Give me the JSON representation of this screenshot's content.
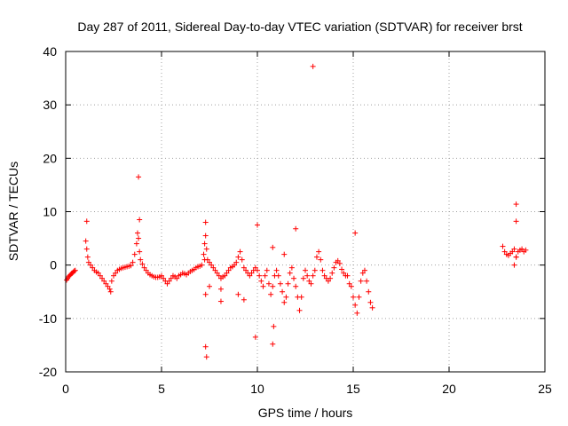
{
  "chart_data": {
    "type": "scatter",
    "title": "Day 287 of 2011, Sidereal Day-to-day VTEC variation (SDTVAR) for receiver brst",
    "xlabel": "GPS time / hours",
    "ylabel": "SDTVAR / TECUs",
    "xlim": [
      0,
      25
    ],
    "ylim": [
      -20,
      40
    ],
    "xticks": [
      0,
      5,
      10,
      15,
      20,
      25
    ],
    "yticks": [
      -20,
      -10,
      0,
      10,
      20,
      30,
      40
    ],
    "grid": true,
    "marker": "+",
    "color": "#ff0000",
    "series": [
      {
        "name": "SDTVAR",
        "x": [
          0.05,
          0.1,
          0.15,
          0.2,
          0.25,
          0.3,
          0.35,
          0.4,
          0.45,
          0.5,
          1.05,
          1.1,
          1.15,
          1.2,
          1.3,
          1.4,
          1.5,
          1.6,
          1.7,
          1.8,
          1.9,
          2.0,
          2.1,
          2.2,
          2.3,
          2.35,
          2.4,
          2.5,
          2.6,
          2.7,
          2.8,
          2.9,
          3.0,
          3.1,
          3.2,
          3.3,
          3.4,
          3.5,
          3.6,
          3.7,
          3.75,
          3.8,
          3.85,
          3.9,
          4.0,
          4.1,
          4.2,
          4.3,
          4.4,
          4.5,
          4.6,
          4.7,
          4.8,
          4.9,
          5.0,
          5.1,
          5.2,
          5.3,
          5.4,
          5.5,
          5.6,
          5.7,
          5.8,
          5.9,
          6.0,
          6.1,
          6.2,
          6.3,
          6.4,
          6.5,
          6.6,
          6.7,
          6.8,
          6.9,
          7.0,
          7.1,
          7.2,
          7.25,
          7.3,
          7.35,
          7.4,
          7.5,
          7.6,
          7.7,
          7.8,
          7.9,
          8.0,
          8.1,
          8.2,
          8.3,
          8.4,
          8.5,
          8.6,
          8.7,
          8.8,
          8.9,
          9.0,
          9.1,
          9.2,
          9.3,
          9.4,
          9.5,
          9.6,
          9.7,
          9.8,
          9.9,
          10.0,
          10.1,
          10.2,
          10.3,
          10.4,
          10.5,
          10.6,
          10.7,
          10.8,
          10.9,
          11.0,
          11.1,
          11.2,
          11.3,
          11.4,
          11.5,
          11.6,
          11.7,
          11.8,
          11.9,
          12.0,
          12.1,
          12.2,
          12.3,
          12.4,
          12.5,
          12.6,
          12.7,
          12.8,
          12.9,
          13.0,
          13.1,
          13.2,
          13.3,
          13.4,
          13.5,
          13.6,
          13.7,
          13.8,
          13.9,
          14.0,
          14.1,
          14.2,
          14.3,
          14.4,
          14.5,
          14.6,
          14.7,
          14.8,
          14.9,
          15.0,
          15.1,
          15.2,
          15.3,
          15.4,
          15.5,
          15.6,
          15.7,
          15.8,
          15.9,
          16.0,
          22.8,
          22.9,
          23.0,
          23.1,
          23.2,
          23.3,
          23.4,
          23.5,
          23.6,
          23.7,
          23.8,
          23.9,
          24.0,
          1.1,
          3.8,
          3.85,
          7.3,
          7.35,
          7.3,
          7.3,
          7.5,
          7.25,
          8.1,
          8.1,
          9.0,
          9.3,
          9.9,
          10.0,
          10.8,
          10.85,
          10.8,
          11.4,
          12.0,
          12.9,
          15.1,
          23.5,
          23.5,
          23.4,
          23.5
        ],
        "y": [
          -2.8,
          -2.5,
          -2.2,
          -2.0,
          -1.8,
          -1.6,
          -1.5,
          -1.3,
          -1.1,
          -1.0,
          4.5,
          3.0,
          1.5,
          0.5,
          0.0,
          -0.5,
          -1.0,
          -1.3,
          -1.5,
          -2.0,
          -2.5,
          -3.0,
          -3.5,
          -4.0,
          -4.5,
          -5.0,
          -3.0,
          -2.0,
          -1.5,
          -1.0,
          -0.8,
          -0.6,
          -0.5,
          -0.4,
          -0.3,
          -0.2,
          -0.1,
          0.5,
          2.0,
          4.0,
          6.0,
          5.0,
          2.5,
          1.0,
          0.2,
          -0.5,
          -1.0,
          -1.5,
          -1.8,
          -2.0,
          -2.2,
          -2.3,
          -2.3,
          -2.2,
          -2.0,
          -2.5,
          -3.0,
          -3.5,
          -3.0,
          -2.5,
          -2.0,
          -2.2,
          -2.5,
          -2.0,
          -1.8,
          -1.5,
          -1.6,
          -1.8,
          -1.5,
          -1.2,
          -1.0,
          -0.8,
          -0.5,
          -0.3,
          -0.2,
          0.0,
          2.0,
          4.0,
          5.5,
          3.0,
          1.0,
          0.5,
          0.0,
          -0.5,
          -1.0,
          -1.5,
          -2.0,
          -2.5,
          -2.2,
          -2.0,
          -1.5,
          -1.0,
          -0.5,
          -0.3,
          0.0,
          0.5,
          1.5,
          2.5,
          1.0,
          -0.5,
          -1.0,
          -1.5,
          -2.0,
          -1.5,
          -1.0,
          -0.5,
          -1.0,
          -2.0,
          -3.0,
          -4.0,
          -2.0,
          -1.0,
          -3.5,
          -5.5,
          -4.0,
          -2.0,
          -1.0,
          -2.0,
          -3.5,
          -5.0,
          -7.0,
          -6.0,
          -3.5,
          -1.5,
          -0.5,
          -2.5,
          -4.0,
          -6.0,
          -8.5,
          -6.0,
          -2.5,
          -1.0,
          -2.0,
          -3.0,
          -3.5,
          -2.0,
          -1.0,
          1.5,
          2.5,
          1.0,
          -1.0,
          -2.0,
          -2.5,
          -3.0,
          -2.5,
          -1.5,
          -0.5,
          0.5,
          0.8,
          0.3,
          -0.8,
          -1.5,
          -2.0,
          -2.0,
          -3.5,
          -4.0,
          -6.0,
          -7.5,
          -9.0,
          -6.0,
          -3.0,
          -1.5,
          -1.0,
          -3.0,
          -5.0,
          -7.0,
          -8.0,
          3.5,
          2.5,
          2.0,
          1.8,
          2.2,
          2.5,
          3.0,
          1.5,
          2.5,
          2.8,
          3.0,
          2.5,
          2.8,
          8.2,
          16.5,
          8.5,
          -15.3,
          -17.2,
          -5.5,
          8.0,
          -4.0,
          1.0,
          -4.5,
          -6.8,
          -5.5,
          -6.5,
          -13.5,
          7.5,
          -14.8,
          -11.5,
          3.3,
          2.0,
          6.8,
          37.2,
          6.0,
          11.4,
          8.2,
          0.0,
          1.5
        ]
      }
    ]
  }
}
